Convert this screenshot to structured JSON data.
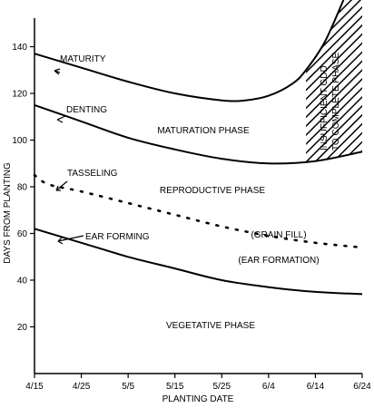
{
  "chart_data": {
    "type": "line",
    "xlabel": "PLANTING DATE",
    "ylabel": "DAYS FROM PLANTING",
    "x_tick_labels": [
      "4/15",
      "4/25",
      "5/5",
      "5/15",
      "5/25",
      "6/4",
      "6/14",
      "6/24"
    ],
    "x_ticks": [
      0,
      10,
      20,
      30,
      40,
      50,
      60,
      70
    ],
    "y_ticks": [
      20,
      40,
      60,
      80,
      100,
      120,
      140
    ],
    "xlim": [
      0,
      70
    ],
    "ylim": [
      0,
      160
    ],
    "series": [
      {
        "name": "MATURITY",
        "style": "solid",
        "color": "#000000",
        "x": [
          0,
          10,
          20,
          30,
          40,
          45,
          50,
          55,
          58,
          62,
          66
        ],
        "y": [
          137,
          131,
          125,
          120,
          117,
          117,
          119,
          124,
          130,
          142,
          160
        ]
      },
      {
        "name": "DENTING",
        "style": "solid",
        "color": "#000000",
        "x": [
          0,
          10,
          20,
          30,
          40,
          50,
          60,
          70
        ],
        "y": [
          115,
          108,
          101,
          96,
          92,
          90,
          91,
          95
        ]
      },
      {
        "name": "TASSELING",
        "style": "dotted",
        "color": "#000000",
        "x": [
          0,
          3,
          10,
          20,
          30,
          40,
          50,
          60,
          70
        ],
        "y": [
          85,
          81,
          78,
          73,
          68,
          63,
          59,
          56,
          54
        ]
      },
      {
        "name": "EAR FORMING",
        "style": "solid",
        "color": "#000000",
        "x": [
          0,
          10,
          20,
          30,
          40,
          50,
          60,
          70
        ],
        "y": [
          62,
          56,
          50,
          45,
          40,
          37,
          35,
          34
        ]
      }
    ],
    "hatched_region": {
      "label": "INSUFFICIENT GDD TO COMPLETE PHASE",
      "x": [
        58,
        70
      ],
      "bottom_series": "DENTING",
      "top_series": "MATURITY"
    },
    "region_labels": [
      {
        "text": "MATURATION PHASE",
        "x": 35,
        "y": 109
      },
      {
        "text": "REPRODUCTIVE PHASE",
        "x": 35,
        "y": 82
      },
      {
        "text": "(GRAIN FILL)",
        "x": 54,
        "y": 59
      },
      {
        "text": "(EAR FORMATION)",
        "x": 54,
        "y": 51
      },
      {
        "text": "VEGETATIVE PHASE",
        "x": 32,
        "y": 17
      }
    ]
  }
}
